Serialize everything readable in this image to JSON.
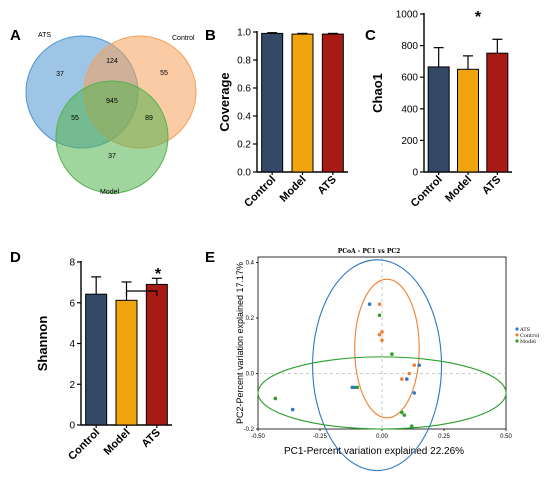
{
  "colors": {
    "control": "#344966",
    "model": "#f0a40e",
    "ats": "#a81a14",
    "venn_ats": "#4e95cf",
    "venn_control": "#f6a05a",
    "venn_model": "#53b34e",
    "pcoa_ats": "#2f78c4",
    "pcoa_control": "#f08030",
    "pcoa_model": "#2aa02b"
  },
  "panels": {
    "a": {
      "letter": "A"
    },
    "b": {
      "letter": "B"
    },
    "c": {
      "letter": "C",
      "sig": "*"
    },
    "d": {
      "letter": "D",
      "sig": "*"
    },
    "e": {
      "letter": "E"
    }
  },
  "chart_data": [
    {
      "id": "venn",
      "type": "venn",
      "sets": [
        "ATS",
        "Control",
        "Model"
      ],
      "regions": {
        "ats_only": 37,
        "control_only": 55,
        "model_only": 37,
        "ats_control": 124,
        "ats_model": 55,
        "control_model": 89,
        "all": 945
      }
    },
    {
      "id": "coverage",
      "type": "bar",
      "categories": [
        "Control",
        "Model",
        "ATS"
      ],
      "values": [
        0.99,
        0.985,
        0.985
      ],
      "errors": [
        0.005,
        0.005,
        0.005
      ],
      "ylabel": "Coverage",
      "ylim": [
        0,
        1.0
      ],
      "yticks": [
        "0.0",
        "0.2",
        "0.4",
        "0.6",
        "0.8",
        "1.0"
      ]
    },
    {
      "id": "chao1",
      "type": "bar",
      "categories": [
        "Control",
        "Model",
        "ATS"
      ],
      "values": [
        665,
        650,
        752
      ],
      "errors": [
        122,
        85,
        88
      ],
      "ylabel": "Chao1",
      "ylim": [
        0,
        1000
      ],
      "yticks": [
        "0",
        "200",
        "400",
        "600",
        "800",
        "1000"
      ]
    },
    {
      "id": "shannon",
      "type": "bar",
      "categories": [
        "Control",
        "Model",
        "ATS"
      ],
      "values": [
        6.42,
        6.12,
        6.9
      ],
      "errors": [
        0.85,
        0.9,
        0.3
      ],
      "ylabel": "Shannon",
      "ylim": [
        0,
        8
      ],
      "yticks": [
        "0",
        "2",
        "4",
        "6",
        "8"
      ]
    },
    {
      "id": "pcoa",
      "type": "scatter",
      "title": "PCoA - PC1 vs PC2",
      "xlabel": "PC1-Percent variation explained 22.26%",
      "ylabel": "PC2-Percent variation explained 17.17%",
      "xlim": [
        -0.5,
        0.5
      ],
      "ylim": [
        -0.2,
        0.42
      ],
      "xticks": [
        "-0.50",
        "-0.25",
        "0.00",
        "0.25",
        "0.50"
      ],
      "yticks": [
        "-0.2",
        "0.0",
        "0.2",
        "0.4"
      ],
      "series": [
        {
          "name": "ATS",
          "x": [
            -0.36,
            -0.12,
            -0.11,
            -0.05,
            0.1,
            0.15,
            0.13
          ],
          "y": [
            -0.13,
            -0.05,
            -0.05,
            0.25,
            -0.02,
            0.03,
            -0.07
          ]
        },
        {
          "name": "Control",
          "x": [
            -0.01,
            -0.01,
            0.0,
            0.0,
            0.08,
            0.13,
            0.11
          ],
          "y": [
            0.25,
            0.14,
            0.15,
            0.12,
            -0.02,
            0.03,
            0.0
          ]
        },
        {
          "name": "Model",
          "x": [
            -0.43,
            -0.1,
            -0.01,
            0.04,
            0.08,
            0.09,
            0.12
          ],
          "y": [
            -0.09,
            -0.05,
            0.21,
            0.07,
            -0.14,
            -0.15,
            -0.19
          ]
        }
      ],
      "ellipses": [
        {
          "series": "ATS",
          "cx": -0.02,
          "cy": 0.03,
          "rx": 0.26,
          "ry": 0.38
        },
        {
          "series": "Control",
          "cx": 0.02,
          "cy": 0.09,
          "rx": 0.13,
          "ry": 0.25
        },
        {
          "series": "Model",
          "cx": 0.0,
          "cy": -0.07,
          "rx": 0.5,
          "ry": 0.13
        }
      ]
    }
  ]
}
